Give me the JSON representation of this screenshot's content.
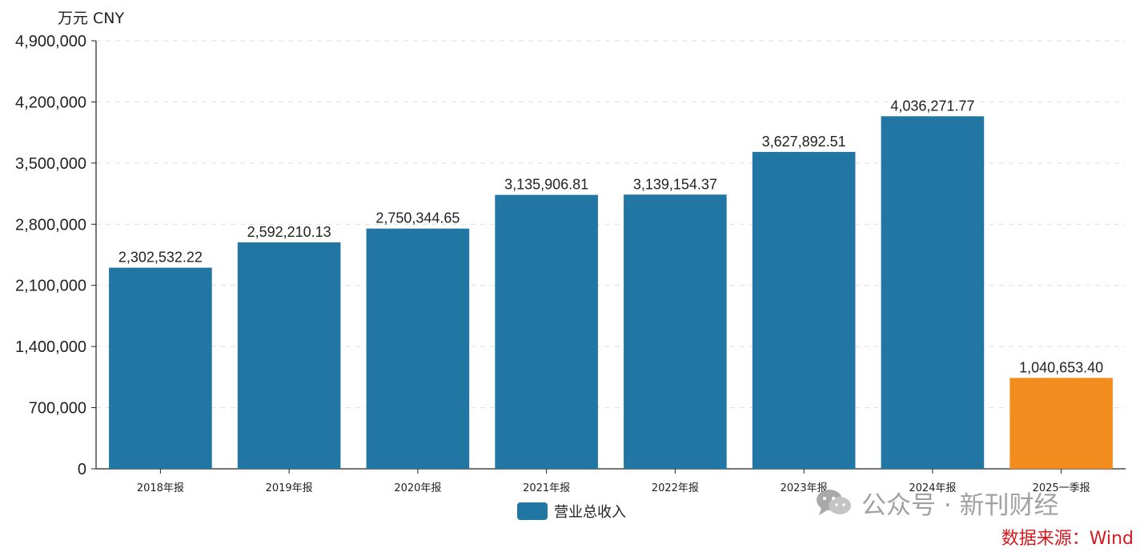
{
  "chart_data": {
    "type": "bar",
    "title": "",
    "xlabel": "",
    "ylabel": "",
    "unit": "万元  CNY",
    "categories": [
      "2018年报",
      "2019年报",
      "2020年报",
      "2021年报",
      "2022年报",
      "2023年报",
      "2024年报",
      "2025一季报"
    ],
    "series": [
      {
        "name": "营业总收入",
        "values": [
          2302532.22,
          2592210.13,
          2750344.65,
          3135906.81,
          3139154.37,
          3627892.51,
          4036271.77,
          1040653.4
        ]
      }
    ],
    "value_labels": [
      "2,302,532.22",
      "2,592,210.13",
      "2,750,344.65",
      "3,135,906.81",
      "3,139,154.37",
      "3,627,892.51",
      "4,036,271.77",
      "1,040,653.40"
    ],
    "bar_colors": [
      "#2176A3",
      "#2176A3",
      "#2176A3",
      "#2176A3",
      "#2176A3",
      "#2176A3",
      "#2176A3",
      "#F28C1E"
    ],
    "ylim": [
      0,
      4900000
    ],
    "y_ticks": [
      0,
      700000,
      1400000,
      2100000,
      2800000,
      3500000,
      4200000,
      4900000
    ],
    "y_tick_labels": [
      "0",
      "700,000",
      "1,400,000",
      "2,100,000",
      "2,800,000",
      "3,500,000",
      "4,200,000",
      "4,900,000"
    ],
    "grid": true,
    "legend_position": "bottom-center"
  },
  "watermark": {
    "text": "公众号 · 新刊财经",
    "icon": "wechat-icon"
  },
  "source": "数据来源：Wind",
  "colors": {
    "primary_bar": "#2176A3",
    "highlight_bar": "#F28C1E",
    "source_text": "#D71920"
  }
}
